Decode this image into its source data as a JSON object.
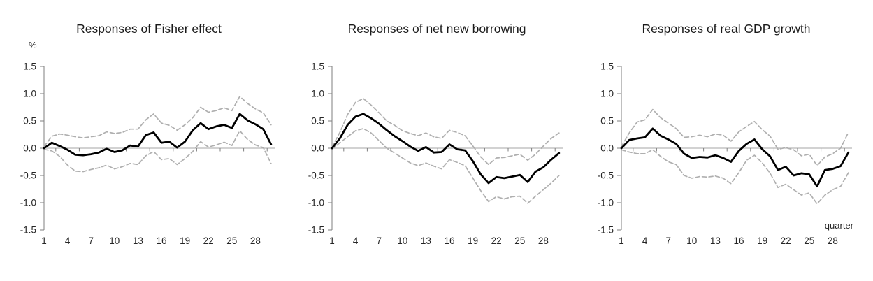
{
  "styles": {
    "background": "#ffffff",
    "main_line_color": "#000000",
    "band_line_color": "#afafaf",
    "axis_color": "#7f7f7f",
    "zero_line_color": "#a6a6a6",
    "label_color": "#262626",
    "title_color": "#1a1a1a"
  },
  "chart_data": [
    {
      "type": "line",
      "title_prefix": "Responses of ",
      "title_underlined": "Fisher effect",
      "y_unit_label": "%",
      "ylim": [
        -1.5,
        1.5
      ],
      "y_tick_labels": [
        "1.5",
        "1.0",
        "0.5",
        "0.0",
        "-0.5",
        "-1.0",
        "-1.5"
      ],
      "x_tick_labels": [
        "1",
        "4",
        "7",
        "10",
        "13",
        "16",
        "19",
        "22",
        "25",
        "28"
      ],
      "x_range": [
        1,
        30
      ],
      "grid": "zero-line-only",
      "legend": "none",
      "series": [
        {
          "name": "point-estimate",
          "style": "solid",
          "color": "#000000",
          "values": [
            0.0,
            0.1,
            0.04,
            -0.03,
            -0.12,
            -0.13,
            -0.11,
            -0.08,
            -0.01,
            -0.07,
            -0.04,
            0.05,
            0.03,
            0.24,
            0.29,
            0.1,
            0.12,
            0.01,
            0.12,
            0.33,
            0.46,
            0.35,
            0.4,
            0.43,
            0.37,
            0.63,
            0.51,
            0.44,
            0.35,
            0.07
          ]
        },
        {
          "name": "upper-confidence-band",
          "style": "dashed",
          "color": "#afafaf",
          "values": [
            0.03,
            0.22,
            0.26,
            0.24,
            0.21,
            0.19,
            0.21,
            0.23,
            0.3,
            0.27,
            0.29,
            0.35,
            0.35,
            0.52,
            0.63,
            0.46,
            0.42,
            0.33,
            0.43,
            0.56,
            0.75,
            0.66,
            0.69,
            0.74,
            0.69,
            0.95,
            0.82,
            0.72,
            0.65,
            0.43
          ]
        },
        {
          "name": "lower-confidence-band",
          "style": "dashed",
          "color": "#afafaf",
          "values": [
            -0.02,
            -0.05,
            -0.15,
            -0.31,
            -0.42,
            -0.43,
            -0.39,
            -0.36,
            -0.31,
            -0.38,
            -0.34,
            -0.28,
            -0.3,
            -0.14,
            -0.06,
            -0.21,
            -0.19,
            -0.3,
            -0.19,
            -0.06,
            0.12,
            0.02,
            0.06,
            0.11,
            0.05,
            0.32,
            0.16,
            0.06,
            0.01,
            -0.28
          ]
        }
      ]
    },
    {
      "type": "line",
      "title_prefix": "Responses of ",
      "title_underlined": "net new borrowing",
      "ylim": [
        -1.5,
        1.5
      ],
      "y_tick_labels": [
        "1.5",
        "1.0",
        "0.5",
        "0.0",
        "-0.5",
        "-1.0",
        "-1.5"
      ],
      "x_tick_labels": [
        "1",
        "4",
        "7",
        "10",
        "13",
        "16",
        "19",
        "22",
        "25",
        "28"
      ],
      "x_range": [
        1,
        30
      ],
      "grid": "zero-line-only",
      "legend": "none",
      "series": [
        {
          "name": "point-estimate",
          "style": "solid",
          "color": "#000000",
          "values": [
            0.0,
            0.18,
            0.43,
            0.58,
            0.63,
            0.55,
            0.45,
            0.33,
            0.22,
            0.13,
            0.03,
            -0.05,
            0.02,
            -0.08,
            -0.07,
            0.07,
            -0.02,
            -0.04,
            -0.24,
            -0.48,
            -0.64,
            -0.53,
            -0.55,
            -0.52,
            -0.49,
            -0.62,
            -0.43,
            -0.35,
            -0.21,
            -0.09
          ]
        },
        {
          "name": "upper-confidence-band",
          "style": "dashed",
          "color": "#afafaf",
          "values": [
            0.02,
            0.29,
            0.62,
            0.84,
            0.91,
            0.79,
            0.65,
            0.5,
            0.42,
            0.32,
            0.27,
            0.23,
            0.28,
            0.21,
            0.18,
            0.33,
            0.29,
            0.23,
            0.04,
            -0.16,
            -0.3,
            -0.18,
            -0.17,
            -0.14,
            -0.11,
            -0.22,
            -0.11,
            0.04,
            0.18,
            0.28
          ]
        },
        {
          "name": "lower-confidence-band",
          "style": "dashed",
          "color": "#afafaf",
          "values": [
            -0.02,
            0.1,
            0.21,
            0.32,
            0.36,
            0.28,
            0.14,
            0.0,
            -0.09,
            -0.18,
            -0.27,
            -0.32,
            -0.27,
            -0.33,
            -0.38,
            -0.21,
            -0.26,
            -0.32,
            -0.55,
            -0.78,
            -0.98,
            -0.89,
            -0.93,
            -0.89,
            -0.88,
            -1.01,
            -0.88,
            -0.76,
            -0.64,
            -0.5
          ]
        }
      ]
    },
    {
      "type": "line",
      "title_prefix": "Responses of ",
      "title_underlined": "real GDP growth",
      "x_axis_label": "quarter",
      "ylim": [
        -1.5,
        1.5
      ],
      "y_tick_labels": [
        "1.5",
        "1.0",
        "0.5",
        "0.0",
        "-0.5",
        "-1.0",
        "-1.5"
      ],
      "x_tick_labels": [
        "1",
        "4",
        "7",
        "10",
        "13",
        "16",
        "19",
        "22",
        "25",
        "28"
      ],
      "x_range": [
        1,
        30
      ],
      "grid": "zero-line-only",
      "legend": "none",
      "series": [
        {
          "name": "point-estimate",
          "style": "solid",
          "color": "#000000",
          "values": [
            0.0,
            0.15,
            0.18,
            0.2,
            0.36,
            0.23,
            0.16,
            0.08,
            -0.1,
            -0.18,
            -0.16,
            -0.17,
            -0.13,
            -0.18,
            -0.25,
            -0.05,
            0.08,
            0.16,
            -0.02,
            -0.15,
            -0.4,
            -0.34,
            -0.5,
            -0.46,
            -0.48,
            -0.7,
            -0.4,
            -0.38,
            -0.33,
            -0.08
          ]
        },
        {
          "name": "upper-confidence-band",
          "style": "dashed",
          "color": "#afafaf",
          "values": [
            0.03,
            0.28,
            0.48,
            0.52,
            0.71,
            0.56,
            0.46,
            0.36,
            0.2,
            0.21,
            0.24,
            0.21,
            0.26,
            0.24,
            0.13,
            0.3,
            0.4,
            0.49,
            0.34,
            0.22,
            -0.02,
            0.01,
            -0.03,
            -0.14,
            -0.11,
            -0.32,
            -0.16,
            -0.1,
            0.0,
            0.29
          ]
        },
        {
          "name": "lower-confidence-band",
          "style": "dashed",
          "color": "#afafaf",
          "values": [
            -0.03,
            -0.07,
            -0.1,
            -0.1,
            -0.03,
            -0.15,
            -0.25,
            -0.3,
            -0.5,
            -0.55,
            -0.52,
            -0.53,
            -0.51,
            -0.55,
            -0.65,
            -0.45,
            -0.22,
            -0.13,
            -0.27,
            -0.46,
            -0.72,
            -0.66,
            -0.76,
            -0.86,
            -0.82,
            -1.02,
            -0.86,
            -0.76,
            -0.7,
            -0.45
          ]
        }
      ]
    }
  ]
}
